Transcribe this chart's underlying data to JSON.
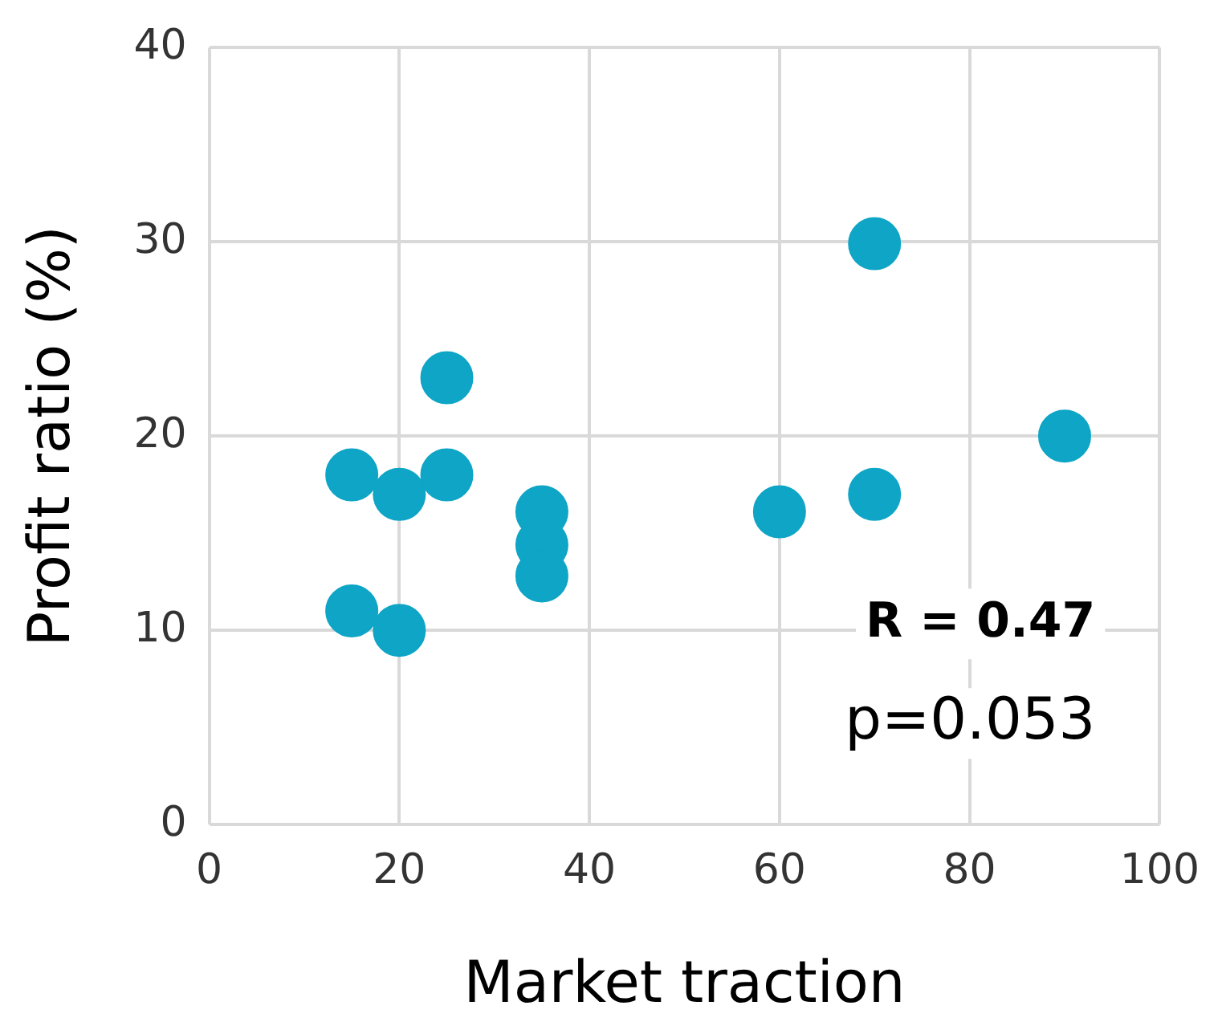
{
  "chart_data": {
    "type": "scatter",
    "xlabel": "Market traction",
    "ylabel": "Profit ratio (%)",
    "x": [
      15,
      15,
      20,
      20,
      25,
      25,
      35,
      35,
      35,
      60,
      70,
      70,
      90
    ],
    "values": [
      18,
      11,
      17,
      10,
      23,
      18,
      16.1,
      14.4,
      12.8,
      16.1,
      29.9,
      17,
      20
    ],
    "color": "#0ea5c6",
    "marker": "circle",
    "xlim": [
      0,
      100
    ],
    "xticks": [
      0,
      20,
      40,
      60,
      80,
      100
    ],
    "ylim": [
      0,
      40
    ],
    "yticks": [
      0,
      10,
      20,
      30,
      40
    ],
    "grid": true,
    "legend": false,
    "annotations": [
      "R = 0.47",
      "p=0.053"
    ]
  }
}
